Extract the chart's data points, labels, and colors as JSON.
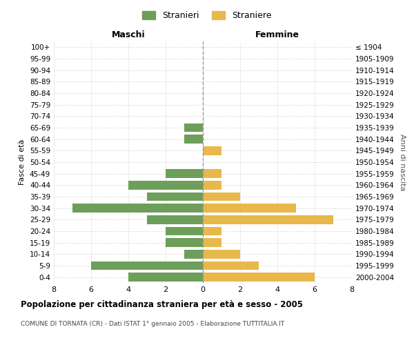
{
  "age_groups": [
    "100+",
    "95-99",
    "90-94",
    "85-89",
    "80-84",
    "75-79",
    "70-74",
    "65-69",
    "60-64",
    "55-59",
    "50-54",
    "45-49",
    "40-44",
    "35-39",
    "30-34",
    "25-29",
    "20-24",
    "15-19",
    "10-14",
    "5-9",
    "0-4"
  ],
  "birth_years": [
    "≤ 1904",
    "1905-1909",
    "1910-1914",
    "1915-1919",
    "1920-1924",
    "1925-1929",
    "1930-1934",
    "1935-1939",
    "1940-1944",
    "1945-1949",
    "1950-1954",
    "1955-1959",
    "1960-1964",
    "1965-1969",
    "1970-1974",
    "1975-1979",
    "1980-1984",
    "1985-1989",
    "1990-1994",
    "1995-1999",
    "2000-2004"
  ],
  "maschi": [
    0,
    0,
    0,
    0,
    0,
    0,
    0,
    1,
    1,
    0,
    0,
    2,
    4,
    3,
    7,
    3,
    2,
    2,
    1,
    6,
    4
  ],
  "femmine": [
    0,
    0,
    0,
    0,
    0,
    0,
    0,
    0,
    0,
    1,
    0,
    1,
    1,
    2,
    5,
    7,
    1,
    1,
    2,
    3,
    6
  ],
  "color_maschi": "#6d9e5a",
  "color_femmine": "#e8b84b",
  "title": "Popolazione per cittadinanza straniera per età e sesso - 2005",
  "subtitle": "COMUNE DI TORNATA (CR) - Dati ISTAT 1° gennaio 2005 - Elaborazione TUTTITALIA.IT",
  "xlabel_left": "Maschi",
  "xlabel_right": "Femmine",
  "ylabel_left": "Fasce di età",
  "ylabel_right": "Anni di nascita",
  "legend_maschi": "Stranieri",
  "legend_femmine": "Straniere",
  "xlim": 8,
  "background_color": "#ffffff",
  "grid_color": "#cccccc"
}
